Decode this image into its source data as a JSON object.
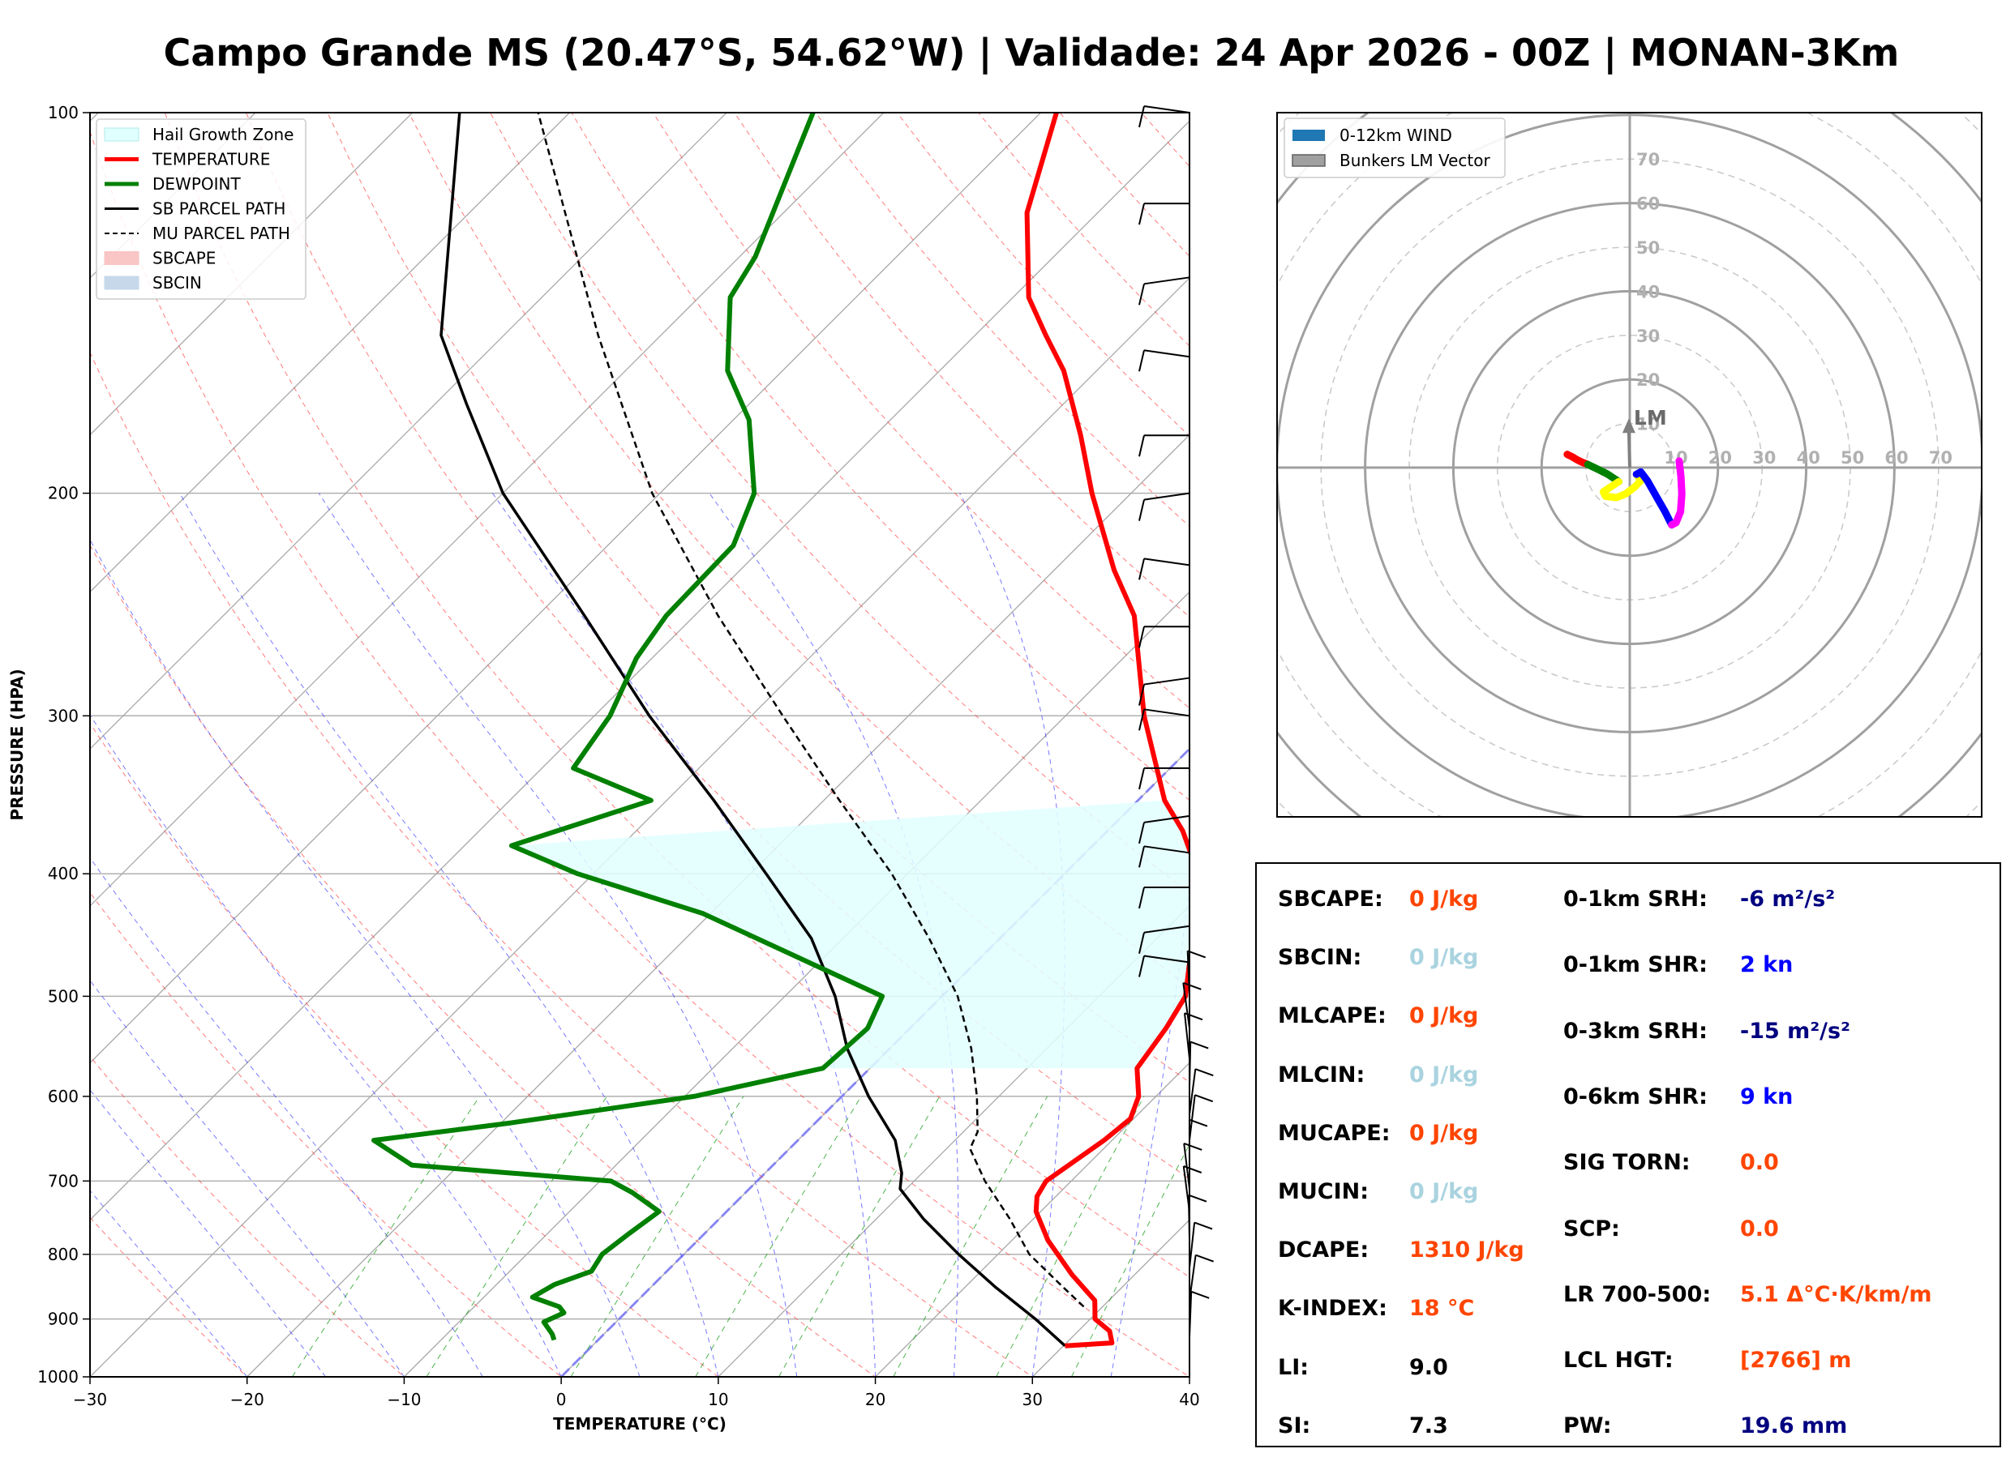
{
  "title": "Campo Grande MS (20.47°S, 54.62°W) | Validade: 24 Apr 2026 - 00Z | MONAN-3Km",
  "colors": {
    "temperature": "#ff0000",
    "dewpoint": "#008000",
    "sb_parcel": "#000000",
    "mu_parcel": "#000000",
    "hail_zone": "#e0ffff",
    "isotherm": "#808080",
    "dry_adiabat": "#ff4040",
    "moist_adiabat": "#4040ff",
    "mixing_ratio": "#20a020",
    "zero_isotherm": "#7070ff",
    "hodo_0_3": "#ff0000",
    "hodo_3_6": "#008000",
    "hodo_6_9": "#ffff00",
    "hodo_9_12": "#0000ff",
    "hodo_12_15": "#ff00ff",
    "value_red": "#ff4500",
    "value_lightblue": "#a9d3df",
    "value_navy": "#000080",
    "value_blue": "#0000ff"
  },
  "chart_data": [
    {
      "type": "line",
      "subtype": "skew-T log-P sounding",
      "xlabel": "TEMPERATURE (°C)",
      "ylabel": "PRESSURE (HPA)",
      "xlim": [
        -30,
        40
      ],
      "ylim": [
        1000,
        100
      ],
      "y_scale": "log",
      "skew": "isotherms slanted 45° to the right",
      "grid": true,
      "legend_position": "top-left",
      "x_ticks": [
        "−30",
        "−20",
        "−10",
        "0",
        "10",
        "20",
        "30",
        "40"
      ],
      "y_ticks": [
        "1000",
        "900",
        "800",
        "700",
        "600",
        "500",
        "400",
        "300",
        "200",
        "100"
      ],
      "legend": [
        {
          "label": "Hail Growth Zone",
          "kind": "patch-hail"
        },
        {
          "label": "TEMPERATURE",
          "kind": "line-red"
        },
        {
          "label": "DEWPOINT",
          "kind": "line-green"
        },
        {
          "label": "SB PARCEL PATH",
          "kind": "line-black"
        },
        {
          "label": "MU PARCEL PATH",
          "kind": "line-dashed"
        },
        {
          "label": "SBCAPE",
          "kind": "patch-pink"
        },
        {
          "label": "SBCIN",
          "kind": "patch-blue"
        }
      ],
      "series": [
        {
          "name": "TEMPERATURE",
          "points": [
            [
              945,
              30.1
            ],
            [
              940,
              32.9
            ],
            [
              920,
              32.0
            ],
            [
              900,
              30.3
            ],
            [
              870,
              29.1
            ],
            [
              830,
              26.0
            ],
            [
              780,
              22.3
            ],
            [
              740,
              19.7
            ],
            [
              720,
              18.8
            ],
            [
              700,
              18.4
            ],
            [
              650,
              19.5
            ],
            [
              625,
              19.8
            ],
            [
              600,
              18.9
            ],
            [
              570,
              17.0
            ],
            [
              530,
              16.3
            ],
            [
              500,
              15.5
            ],
            [
              470,
              13.6
            ],
            [
              445,
              12.0
            ],
            [
              420,
              10.4
            ],
            [
              390,
              7.3
            ],
            [
              370,
              4.8
            ],
            [
              350,
              1.7
            ],
            [
              300,
              -5.0
            ],
            [
              250,
              -12.0
            ],
            [
              230,
              -16.2
            ],
            [
              200,
              -22.5
            ],
            [
              180,
              -26.9
            ],
            [
              160,
              -32.1
            ],
            [
              150,
              -35.5
            ],
            [
              140,
              -39.0
            ],
            [
              120,
              -44.5
            ],
            [
              100,
              -49.0
            ]
          ]
        },
        {
          "name": "DEWPOINT",
          "points": [
            [
              935,
              -2.8
            ],
            [
              925,
              -3.3
            ],
            [
              905,
              -4.6
            ],
            [
              890,
              -3.9
            ],
            [
              880,
              -4.6
            ],
            [
              865,
              -6.9
            ],
            [
              845,
              -6.3
            ],
            [
              825,
              -4.8
            ],
            [
              800,
              -5.2
            ],
            [
              770,
              -4.8
            ],
            [
              740,
              -4.3
            ],
            [
              715,
              -7.2
            ],
            [
              700,
              -9.3
            ],
            [
              680,
              -23.0
            ],
            [
              650,
              -27.0
            ],
            [
              630,
              -19.5
            ],
            [
              600,
              -9.4
            ],
            [
              570,
              -3.0
            ],
            [
              530,
              -2.7
            ],
            [
              500,
              -3.8
            ],
            [
              430,
              -20.5
            ],
            [
              400,
              -31.0
            ],
            [
              380,
              -37.0
            ],
            [
              350,
              -31.0
            ],
            [
              330,
              -38.0
            ],
            [
              300,
              -39.0
            ],
            [
              270,
              -41.0
            ],
            [
              250,
              -41.8
            ],
            [
              220,
              -42.0
            ],
            [
              200,
              -44.0
            ],
            [
              175,
              -49.0
            ],
            [
              160,
              -53.5
            ],
            [
              140,
              -58.0
            ],
            [
              130,
              -59.0
            ],
            [
              100,
              -64.5
            ]
          ]
        },
        {
          "name": "SB PARCEL PATH",
          "points": [
            [
              945,
              30.1
            ],
            [
              900,
              26.5
            ],
            [
              850,
              22.0
            ],
            [
              800,
              17.5
            ],
            [
              750,
              13.0
            ],
            [
              710,
              9.6
            ],
            [
              690,
              8.7
            ],
            [
              650,
              6.2
            ],
            [
              600,
              1.7
            ],
            [
              550,
              -2.7
            ],
            [
              500,
              -6.8
            ],
            [
              450,
              -12.0
            ],
            [
              400,
              -19.0
            ],
            [
              350,
              -27.0
            ],
            [
              300,
              -36.5
            ],
            [
              250,
              -47.0
            ],
            [
              200,
              -60.0
            ],
            [
              170,
              -68.0
            ],
            [
              150,
              -74.0
            ],
            [
              100,
              -87.0
            ]
          ]
        },
        {
          "name": "MU PARCEL PATH",
          "points": [
            [
              880,
              28.8
            ],
            [
              850,
              26.3
            ],
            [
              800,
              22.0
            ],
            [
              750,
              18.5
            ],
            [
              700,
              14.5
            ],
            [
              660,
              11.5
            ],
            [
              640,
              10.9
            ],
            [
              600,
              8.6
            ],
            [
              550,
              5.2
            ],
            [
              500,
              1.0
            ],
            [
              450,
              -4.5
            ],
            [
              400,
              -11.0
            ],
            [
              350,
              -19.0
            ],
            [
              300,
              -28.0
            ],
            [
              250,
              -38.5
            ],
            [
              200,
              -50.5
            ],
            [
              150,
              -64.0
            ],
            [
              100,
              -82.0
            ]
          ]
        }
      ],
      "hail_growth_zone": {
        "top_pressure": 350,
        "bottom_pressure": 380,
        "right_temperature_profile_from_pressure": [
          380,
          570
        ]
      },
      "zero_isotherm_highlighted": true,
      "wind_barbs": {
        "position": "right of plot",
        "units": "kn"
      }
    },
    {
      "type": "scatter",
      "subtype": "hodograph",
      "units": "kn",
      "xlim": [
        -80,
        80
      ],
      "ylim": [
        -80,
        80
      ],
      "ring_labels_y": [
        "70",
        "60",
        "50",
        "40",
        "30",
        "20",
        "10"
      ],
      "ring_labels_x": [
        "10",
        "20",
        "30",
        "40",
        "50",
        "60",
        "70"
      ],
      "grid": true,
      "legend_position": "top-left",
      "legend": [
        {
          "label": "0-12km WIND"
        },
        {
          "label": "Bunkers LM Vector"
        }
      ],
      "bunkers_lm": {
        "label": "LM",
        "u": -0.2,
        "v": 10.8
      },
      "series": [
        {
          "name": "0-3 km",
          "points": [
            [
              -14.2,
              3.0
            ],
            [
              -13.0,
              2.4
            ],
            [
              -12.0,
              1.8
            ],
            [
              -11.0,
              1.3
            ],
            [
              -9.5,
              0.7
            ]
          ]
        },
        {
          "name": "3-6 km",
          "points": [
            [
              -9.5,
              0.7
            ],
            [
              -7.0,
              -0.5
            ],
            [
              -5.0,
              -1.5
            ],
            [
              -3.5,
              -2.5
            ],
            [
              -2.5,
              -3.2
            ]
          ]
        },
        {
          "name": "6-9 km",
          "points": [
            [
              -2.5,
              -3.2
            ],
            [
              -4.5,
              -4.5
            ],
            [
              -6.0,
              -5.5
            ],
            [
              -5.5,
              -6.5
            ],
            [
              -3.0,
              -6.8
            ],
            [
              -1.0,
              -6.0
            ],
            [
              1.0,
              -4.5
            ],
            [
              2.5,
              -3.0
            ],
            [
              1.5,
              -1.5
            ]
          ]
        },
        {
          "name": "9-12 km",
          "points": [
            [
              1.5,
              -1.5
            ],
            [
              2.5,
              -1.0
            ],
            [
              4.0,
              -3.0
            ],
            [
              6.0,
              -6.5
            ],
            [
              8.0,
              -10.0
            ],
            [
              9.5,
              -13.0
            ]
          ]
        },
        {
          "name": "12-15 km",
          "points": [
            [
              9.5,
              -13.0
            ],
            [
              10.5,
              -12.5
            ],
            [
              11.5,
              -10.0
            ],
            [
              11.8,
              -6.0
            ],
            [
              11.6,
              -2.0
            ],
            [
              11.2,
              1.5
            ]
          ]
        }
      ]
    }
  ],
  "params": {
    "left": [
      {
        "label": "SBCAPE:",
        "value": "0 J/kg",
        "color": "value_red"
      },
      {
        "label": "SBCIN:",
        "value": "0 J/kg",
        "color": "value_lightblue"
      },
      {
        "label": "MLCAPE:",
        "value": "0 J/kg",
        "color": "value_red"
      },
      {
        "label": "MLCIN:",
        "value": "0 J/kg",
        "color": "value_lightblue"
      },
      {
        "label": "MUCAPE:",
        "value": "0 J/kg",
        "color": "value_red"
      },
      {
        "label": "MUCIN:",
        "value": "0 J/kg",
        "color": "value_lightblue"
      },
      {
        "label": "DCAPE:",
        "value": "1310 J/kg",
        "color": "value_red"
      },
      {
        "label": "K-INDEX:",
        "value": "18 °C",
        "color": "value_red"
      },
      {
        "label": "LI:",
        "value": "9.0",
        "color": "black"
      },
      {
        "label": "SI:",
        "value": "7.3",
        "color": "black"
      }
    ],
    "right": [
      {
        "label": "0-1km SRH:",
        "value": "-6 m²/s²",
        "color": "value_navy"
      },
      {
        "label": "0-1km SHR:",
        "value": "2 kn",
        "color": "value_blue"
      },
      {
        "label": "0-3km SRH:",
        "value": "-15 m²/s²",
        "color": "value_navy"
      },
      {
        "label": "0-6km SHR:",
        "value": "9 kn",
        "color": "value_blue"
      },
      {
        "label": "SIG TORN:",
        "value": "0.0",
        "color": "value_red"
      },
      {
        "label": "SCP:",
        "value": "0.0",
        "color": "value_red"
      },
      {
        "label": "LR 700-500:",
        "value": "5.1 Δ°C·K/km/m",
        "color": "value_red"
      },
      {
        "label": "LCL HGT:",
        "value": "[2766] m",
        "color": "value_red"
      },
      {
        "label": "PW:",
        "value": "19.6 mm",
        "color": "value_navy"
      }
    ]
  }
}
